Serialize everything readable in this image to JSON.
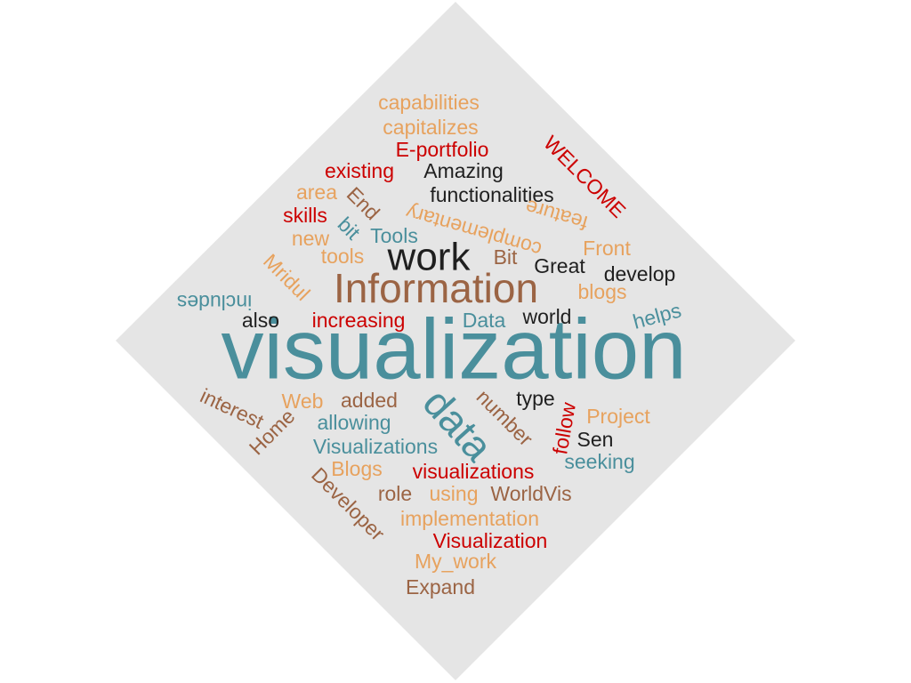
{
  "colors": {
    "background": "#e5e5e5",
    "teal": "#4a8f9c",
    "brown": "#9b6444",
    "orange": "#e7a25e",
    "red": "#cc0000",
    "black": "#1f1f1f"
  },
  "words": [
    {
      "text": "visualization",
      "color": "teal"
    },
    {
      "text": "Information",
      "color": "brown"
    },
    {
      "text": "work",
      "color": "black"
    },
    {
      "text": "data",
      "color": "teal"
    },
    {
      "text": "capabilities",
      "color": "orange"
    },
    {
      "text": "capitalizes",
      "color": "orange"
    },
    {
      "text": "E-portfolio",
      "color": "red"
    },
    {
      "text": "WELCOME",
      "color": "red"
    },
    {
      "text": "existing",
      "color": "red"
    },
    {
      "text": "Amazing",
      "color": "black"
    },
    {
      "text": "area",
      "color": "orange"
    },
    {
      "text": "End",
      "color": "brown"
    },
    {
      "text": "functionalities",
      "color": "black"
    },
    {
      "text": "complementary",
      "color": "orange"
    },
    {
      "text": "feature",
      "color": "orange"
    },
    {
      "text": "skills",
      "color": "red"
    },
    {
      "text": "bit",
      "color": "teal"
    },
    {
      "text": "Tools",
      "color": "teal"
    },
    {
      "text": "new",
      "color": "orange"
    },
    {
      "text": "Front",
      "color": "orange"
    },
    {
      "text": "tools",
      "color": "orange"
    },
    {
      "text": "Bit",
      "color": "brown"
    },
    {
      "text": "Great",
      "color": "black"
    },
    {
      "text": "develop",
      "color": "black"
    },
    {
      "text": "Mridul",
      "color": "orange"
    },
    {
      "text": "blogs",
      "color": "orange"
    },
    {
      "text": "includes",
      "color": "teal"
    },
    {
      "text": "also",
      "color": "black"
    },
    {
      "text": "increasing",
      "color": "red"
    },
    {
      "text": "Data",
      "color": "teal"
    },
    {
      "text": "world",
      "color": "black"
    },
    {
      "text": "helps",
      "color": "teal"
    },
    {
      "text": "interest",
      "color": "brown"
    },
    {
      "text": "Web",
      "color": "orange"
    },
    {
      "text": "added",
      "color": "brown"
    },
    {
      "text": "number",
      "color": "brown"
    },
    {
      "text": "type",
      "color": "black"
    },
    {
      "text": "follow",
      "color": "red"
    },
    {
      "text": "Project",
      "color": "orange"
    },
    {
      "text": "allowing",
      "color": "teal"
    },
    {
      "text": "Home",
      "color": "brown"
    },
    {
      "text": "Sen",
      "color": "black"
    },
    {
      "text": "Visualizations",
      "color": "teal"
    },
    {
      "text": "seeking",
      "color": "teal"
    },
    {
      "text": "Blogs",
      "color": "orange"
    },
    {
      "text": "visualizations",
      "color": "red"
    },
    {
      "text": "Developer",
      "color": "brown"
    },
    {
      "text": "role",
      "color": "brown"
    },
    {
      "text": "using",
      "color": "orange"
    },
    {
      "text": "WorldVis",
      "color": "brown"
    },
    {
      "text": "implementation",
      "color": "orange"
    },
    {
      "text": "Visualization",
      "color": "red"
    },
    {
      "text": "My_work",
      "color": "orange"
    },
    {
      "text": "Expand",
      "color": "brown"
    }
  ]
}
